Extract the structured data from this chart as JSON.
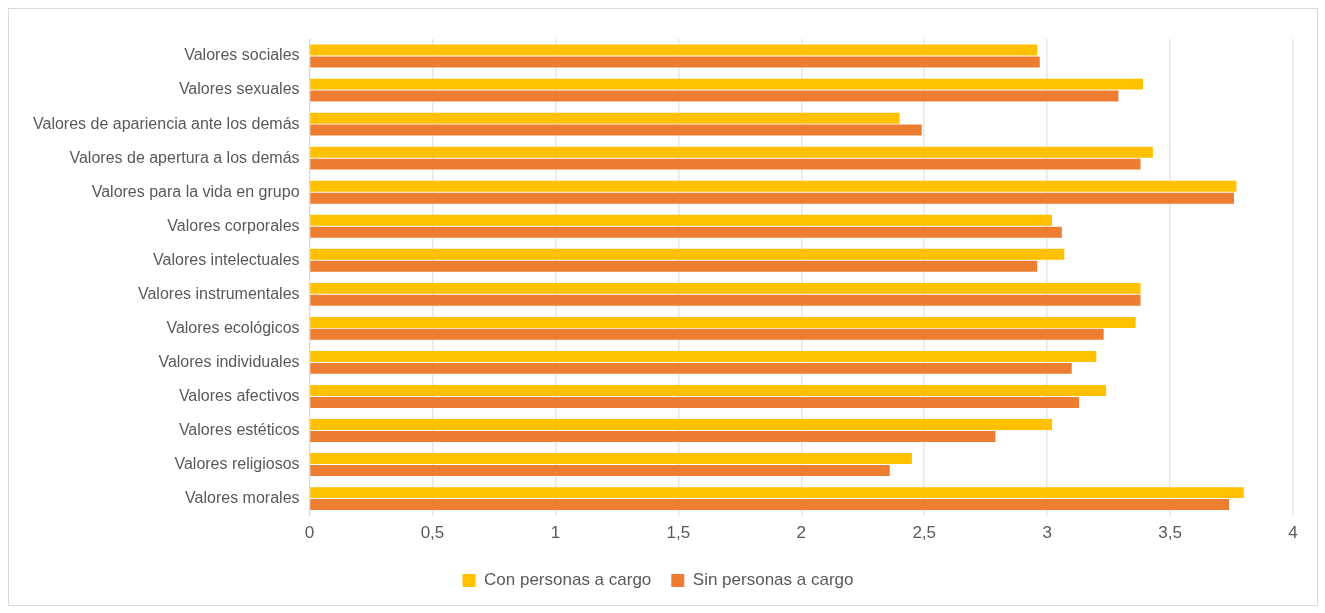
{
  "chart_data": {
    "type": "bar",
    "orientation": "horizontal",
    "categories": [
      "Valores sociales",
      "Valores sexuales",
      "Valores de apariencia ante los demás",
      "Valores de apertura a los demás",
      "Valores para la vida en grupo",
      "Valores corporales",
      "Valores intelectuales",
      "Valores instrumentales",
      "Valores ecológicos",
      "Valores individuales",
      "Valores afectivos",
      "Valores estéticos",
      "Valores religiosos",
      "Valores morales"
    ],
    "series": [
      {
        "name": "Con personas a cargo",
        "color": "#ffc000",
        "values": [
          2.96,
          3.39,
          2.4,
          3.43,
          3.77,
          3.02,
          3.07,
          3.38,
          3.36,
          3.2,
          3.24,
          3.02,
          2.45,
          3.8
        ]
      },
      {
        "name": "Sin personas a cargo",
        "color": "#ed7d31",
        "values": [
          2.97,
          3.29,
          2.49,
          3.38,
          3.76,
          3.06,
          2.96,
          3.38,
          3.23,
          3.1,
          3.13,
          2.79,
          2.36,
          3.74
        ]
      }
    ],
    "xlim": [
      0,
      4
    ],
    "xticks": [
      0,
      {
        "value": 0.5,
        "label": "0,5"
      },
      1,
      {
        "value": 1.5,
        "label": "1,5"
      },
      2,
      {
        "value": 2.5,
        "label": "2,5"
      },
      3,
      {
        "value": 3.5,
        "label": "3,5"
      },
      4
    ],
    "grid": "x",
    "legend": "bottom"
  }
}
